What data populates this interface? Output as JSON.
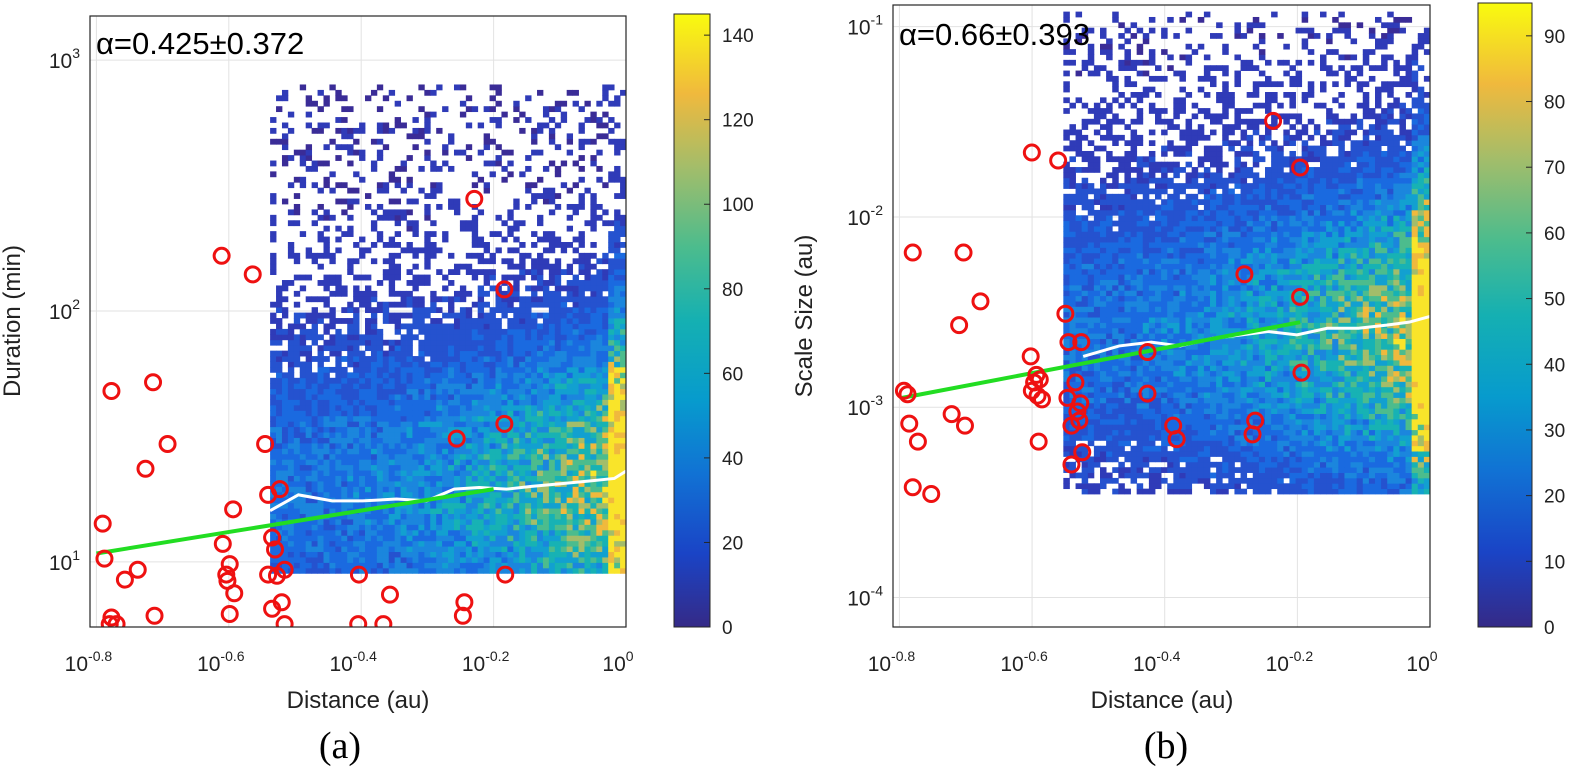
{
  "chart_data": [
    {
      "type": "heatmap",
      "panel_label": "(a)",
      "annotation": "α=0.425±0.372",
      "xlabel": "Distance (au)",
      "ylabel": "Duration (min)",
      "x_scale": "log",
      "y_scale": "log",
      "xlim": [
        0.155,
        1.0
      ],
      "ylim": [
        5.5,
        1500
      ],
      "x_ticks": [
        {
          "base": "10",
          "exp": "-0.8",
          "value": 0.1585
        },
        {
          "base": "10",
          "exp": "-0.6",
          "value": 0.2512
        },
        {
          "base": "10",
          "exp": "-0.4",
          "value": 0.3981
        },
        {
          "base": "10",
          "exp": "-0.2",
          "value": 0.631
        },
        {
          "base": "10",
          "exp": "0",
          "value": 1.0
        }
      ],
      "y_ticks": [
        {
          "base": "10",
          "exp": "1",
          "value": 10
        },
        {
          "base": "10",
          "exp": "2",
          "value": 100
        },
        {
          "base": "10",
          "exp": "3",
          "value": 1000
        }
      ],
      "grid": true,
      "colorbar": {
        "min": 0,
        "max": 145,
        "ticks": [
          "0",
          "20",
          "40",
          "60",
          "80",
          "100",
          "120",
          "140"
        ]
      },
      "heatmap_region": {
        "x": [
          0.29,
          1.0
        ],
        "y": [
          9.0,
          800
        ]
      },
      "fit_line": {
        "color": "#22dd22",
        "points": [
          [
            0.1585,
            10.8
          ],
          [
            0.631,
            19.5
          ]
        ]
      },
      "median_line": {
        "color": "#ffffff",
        "points": [
          [
            0.29,
            16.0
          ],
          [
            0.32,
            18.5
          ],
          [
            0.36,
            17.5
          ],
          [
            0.4,
            17.5
          ],
          [
            0.45,
            17.8
          ],
          [
            0.5,
            17.5
          ],
          [
            0.55,
            19.5
          ],
          [
            0.6,
            19.8
          ],
          [
            0.66,
            19.5
          ],
          [
            0.72,
            20.0
          ],
          [
            0.8,
            20.5
          ],
          [
            0.88,
            21.0
          ],
          [
            0.96,
            21.5
          ],
          [
            1.0,
            23.0
          ]
        ]
      },
      "events": {
        "color": "#ee1111",
        "points": [
          [
            0.162,
            14.2
          ],
          [
            0.163,
            10.3
          ],
          [
            0.167,
            48
          ],
          [
            0.167,
            6.0
          ],
          [
            0.166,
            5.65
          ],
          [
            0.17,
            5.65
          ],
          [
            0.175,
            8.5
          ],
          [
            0.183,
            9.3
          ],
          [
            0.188,
            23.5
          ],
          [
            0.193,
            52
          ],
          [
            0.194,
            6.1
          ],
          [
            0.203,
            29.5
          ],
          [
            0.245,
            166
          ],
          [
            0.246,
            11.8
          ],
          [
            0.249,
            8.9
          ],
          [
            0.25,
            8.4
          ],
          [
            0.252,
            9.8
          ],
          [
            0.255,
            16.2
          ],
          [
            0.256,
            7.5
          ],
          [
            0.252,
            6.2
          ],
          [
            0.273,
            140
          ],
          [
            0.285,
            29.5
          ],
          [
            0.288,
            18.5
          ],
          [
            0.292,
            12.5
          ],
          [
            0.295,
            11.2
          ],
          [
            0.288,
            8.9
          ],
          [
            0.292,
            6.5
          ],
          [
            0.297,
            8.8
          ],
          [
            0.305,
            9.3
          ],
          [
            0.302,
            6.9
          ],
          [
            0.3,
            19.5
          ],
          [
            0.305,
            5.65
          ],
          [
            0.395,
            8.9
          ],
          [
            0.394,
            5.65
          ],
          [
            0.43,
            5.65
          ],
          [
            0.44,
            7.4
          ],
          [
            0.555,
            31
          ],
          [
            0.57,
            6.9
          ],
          [
            0.567,
            6.1
          ],
          [
            0.59,
            280
          ],
          [
            0.655,
            122
          ],
          [
            0.655,
            35.5
          ],
          [
            0.657,
            8.9
          ]
        ]
      }
    },
    {
      "type": "heatmap",
      "panel_label": "(b)",
      "annotation": "α=0.66±0.393",
      "xlabel": "Distance (au)",
      "ylabel": "Scale Size (au)",
      "x_scale": "log",
      "y_scale": "log",
      "xlim": [
        0.155,
        1.0
      ],
      "ylim": [
        7e-05,
        0.13
      ],
      "x_ticks": [
        {
          "base": "10",
          "exp": "-0.8",
          "value": 0.1585
        },
        {
          "base": "10",
          "exp": "-0.6",
          "value": 0.2512
        },
        {
          "base": "10",
          "exp": "-0.4",
          "value": 0.3981
        },
        {
          "base": "10",
          "exp": "-0.2",
          "value": 0.631
        },
        {
          "base": "10",
          "exp": "0",
          "value": 1.0
        }
      ],
      "y_ticks": [
        {
          "base": "10",
          "exp": "-4",
          "value": 0.0001
        },
        {
          "base": "10",
          "exp": "-3",
          "value": 0.001
        },
        {
          "base": "10",
          "exp": "-2",
          "value": 0.01
        },
        {
          "base": "10",
          "exp": "-1",
          "value": 0.1
        }
      ],
      "grid": true,
      "colorbar": {
        "min": 0,
        "max": 95,
        "ticks": [
          "0",
          "10",
          "20",
          "30",
          "40",
          "50",
          "60",
          "70",
          "80",
          "90"
        ]
      },
      "heatmap_region": {
        "x": [
          0.28,
          1.0
        ],
        "y": [
          0.00035,
          0.12
        ]
      },
      "fit_line": {
        "color": "#22dd22",
        "points": [
          [
            0.16,
            0.00112
          ],
          [
            0.637,
            0.0028
          ]
        ]
      },
      "median_line": {
        "color": "#ffffff",
        "points": [
          [
            0.3,
            0.00185
          ],
          [
            0.34,
            0.0021
          ],
          [
            0.38,
            0.0022
          ],
          [
            0.42,
            0.0021
          ],
          [
            0.47,
            0.0023
          ],
          [
            0.52,
            0.0024
          ],
          [
            0.57,
            0.0025
          ],
          [
            0.63,
            0.0024
          ],
          [
            0.7,
            0.0026
          ],
          [
            0.78,
            0.0026
          ],
          [
            0.86,
            0.0027
          ],
          [
            0.93,
            0.0028
          ],
          [
            1.0,
            0.003
          ]
        ]
      },
      "events": {
        "color": "#ee1111",
        "points": [
          [
            0.161,
            0.00122
          ],
          [
            0.163,
            0.00117
          ],
          [
            0.164,
            0.00082
          ],
          [
            0.166,
            0.0065
          ],
          [
            0.166,
            0.00038
          ],
          [
            0.169,
            0.00066
          ],
          [
            0.177,
            0.00035
          ],
          [
            0.19,
            0.00092
          ],
          [
            0.195,
            0.0027
          ],
          [
            0.198,
            0.0065
          ],
          [
            0.199,
            0.0008
          ],
          [
            0.21,
            0.0036
          ],
          [
            0.25,
            0.00185
          ],
          [
            0.251,
            0.0218
          ],
          [
            0.251,
            0.00122
          ],
          [
            0.253,
            0.00135
          ],
          [
            0.255,
            0.00148
          ],
          [
            0.256,
            0.00115
          ],
          [
            0.258,
            0.0014
          ],
          [
            0.26,
            0.0011
          ],
          [
            0.257,
            0.00066
          ],
          [
            0.275,
            0.0198
          ],
          [
            0.282,
            0.0031
          ],
          [
            0.285,
            0.0022
          ],
          [
            0.284,
            0.00112
          ],
          [
            0.288,
            0.0008
          ],
          [
            0.288,
            0.0005
          ],
          [
            0.292,
            0.00135
          ],
          [
            0.294,
            0.00095
          ],
          [
            0.297,
            0.00105
          ],
          [
            0.296,
            0.00085
          ],
          [
            0.298,
            0.0022
          ],
          [
            0.299,
            0.00058
          ],
          [
            0.375,
            0.00195
          ],
          [
            0.375,
            0.00118
          ],
          [
            0.41,
            0.0008
          ],
          [
            0.415,
            0.00068
          ],
          [
            0.525,
            0.005
          ],
          [
            0.54,
            0.00072
          ],
          [
            0.545,
            0.00085
          ],
          [
            0.58,
            0.032
          ],
          [
            0.637,
            0.0182
          ],
          [
            0.637,
            0.0038
          ],
          [
            0.64,
            0.00152
          ]
        ]
      }
    }
  ]
}
